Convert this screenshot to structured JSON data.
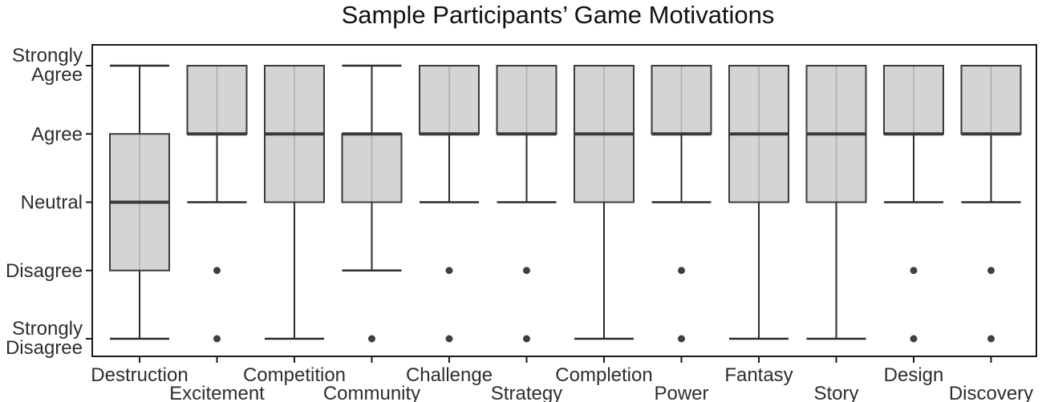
{
  "chart_data": {
    "type": "boxplot",
    "title": "Sample Participants’ Game Motivations",
    "y_axis": {
      "range": [
        1,
        5
      ],
      "ticks": [
        {
          "value": 5,
          "label": "Strongly Agree",
          "lines": [
            "Strongly",
            "Agree"
          ]
        },
        {
          "value": 4,
          "label": "Agree",
          "lines": [
            "Agree"
          ]
        },
        {
          "value": 3,
          "label": "Neutral",
          "lines": [
            "Neutral"
          ]
        },
        {
          "value": 2,
          "label": "Disagree",
          "lines": [
            "Disagree"
          ]
        },
        {
          "value": 1,
          "label": "Strongly Disagree",
          "lines": [
            "Strongly",
            "Disagree"
          ]
        }
      ]
    },
    "value_scale": {
      "1": "Strongly Disagree",
      "2": "Disagree",
      "3": "Neutral",
      "4": "Agree",
      "5": "Strongly Agree"
    },
    "categories": [
      "Destruction",
      "Excitement",
      "Competition",
      "Community",
      "Challenge",
      "Strategy",
      "Completion",
      "Power",
      "Fantasy",
      "Story",
      "Design",
      "Discovery"
    ],
    "series": [
      {
        "category": "Destruction",
        "whisker_low": 1,
        "q1": 2,
        "median": 3,
        "q3": 4,
        "whisker_high": 5,
        "outliers": []
      },
      {
        "category": "Excitement",
        "whisker_low": 3,
        "q1": 4,
        "median": 4,
        "q3": 5,
        "whisker_high": 5,
        "outliers": [
          2,
          1
        ]
      },
      {
        "category": "Competition",
        "whisker_low": 1,
        "q1": 3,
        "median": 4,
        "q3": 5,
        "whisker_high": 5,
        "outliers": []
      },
      {
        "category": "Community",
        "whisker_low": 2,
        "q1": 3,
        "median": 4,
        "q3": 4,
        "whisker_high": 5,
        "outliers": [
          1
        ]
      },
      {
        "category": "Challenge",
        "whisker_low": 3,
        "q1": 4,
        "median": 4,
        "q3": 5,
        "whisker_high": 5,
        "outliers": [
          2,
          1
        ]
      },
      {
        "category": "Strategy",
        "whisker_low": 3,
        "q1": 4,
        "median": 4,
        "q3": 5,
        "whisker_high": 5,
        "outliers": [
          2,
          1
        ]
      },
      {
        "category": "Completion",
        "whisker_low": 1,
        "q1": 3,
        "median": 4,
        "q3": 5,
        "whisker_high": 5,
        "outliers": []
      },
      {
        "category": "Power",
        "whisker_low": 3,
        "q1": 4,
        "median": 4,
        "q3": 5,
        "whisker_high": 5,
        "outliers": [
          2,
          1
        ]
      },
      {
        "category": "Fantasy",
        "whisker_low": 1,
        "q1": 3,
        "median": 4,
        "q3": 5,
        "whisker_high": 5,
        "outliers": []
      },
      {
        "category": "Story",
        "whisker_low": 1,
        "q1": 3,
        "median": 4,
        "q3": 5,
        "whisker_high": 5,
        "outliers": []
      },
      {
        "category": "Design",
        "whisker_low": 3,
        "q1": 4,
        "median": 4,
        "q3": 5,
        "whisker_high": 5,
        "outliers": [
          2,
          1
        ]
      },
      {
        "category": "Discovery",
        "whisker_low": 3,
        "q1": 4,
        "median": 4,
        "q3": 5,
        "whisker_high": 5,
        "outliers": [
          2,
          1
        ]
      }
    ],
    "layout_hints": {
      "grid": false,
      "legend": "none",
      "x_labels_staggered": true
    },
    "colors": {
      "background": "#ffffff",
      "box_fill": "#d4d4d4",
      "box_border": "#3a3a3a",
      "box_center_line": "#ababab",
      "median": "#3a3a3a",
      "whisker": "#2b2b2b",
      "outlier": "#3f3f3f",
      "axis": "#1a1a1a",
      "text": "#2e2e2e"
    }
  }
}
